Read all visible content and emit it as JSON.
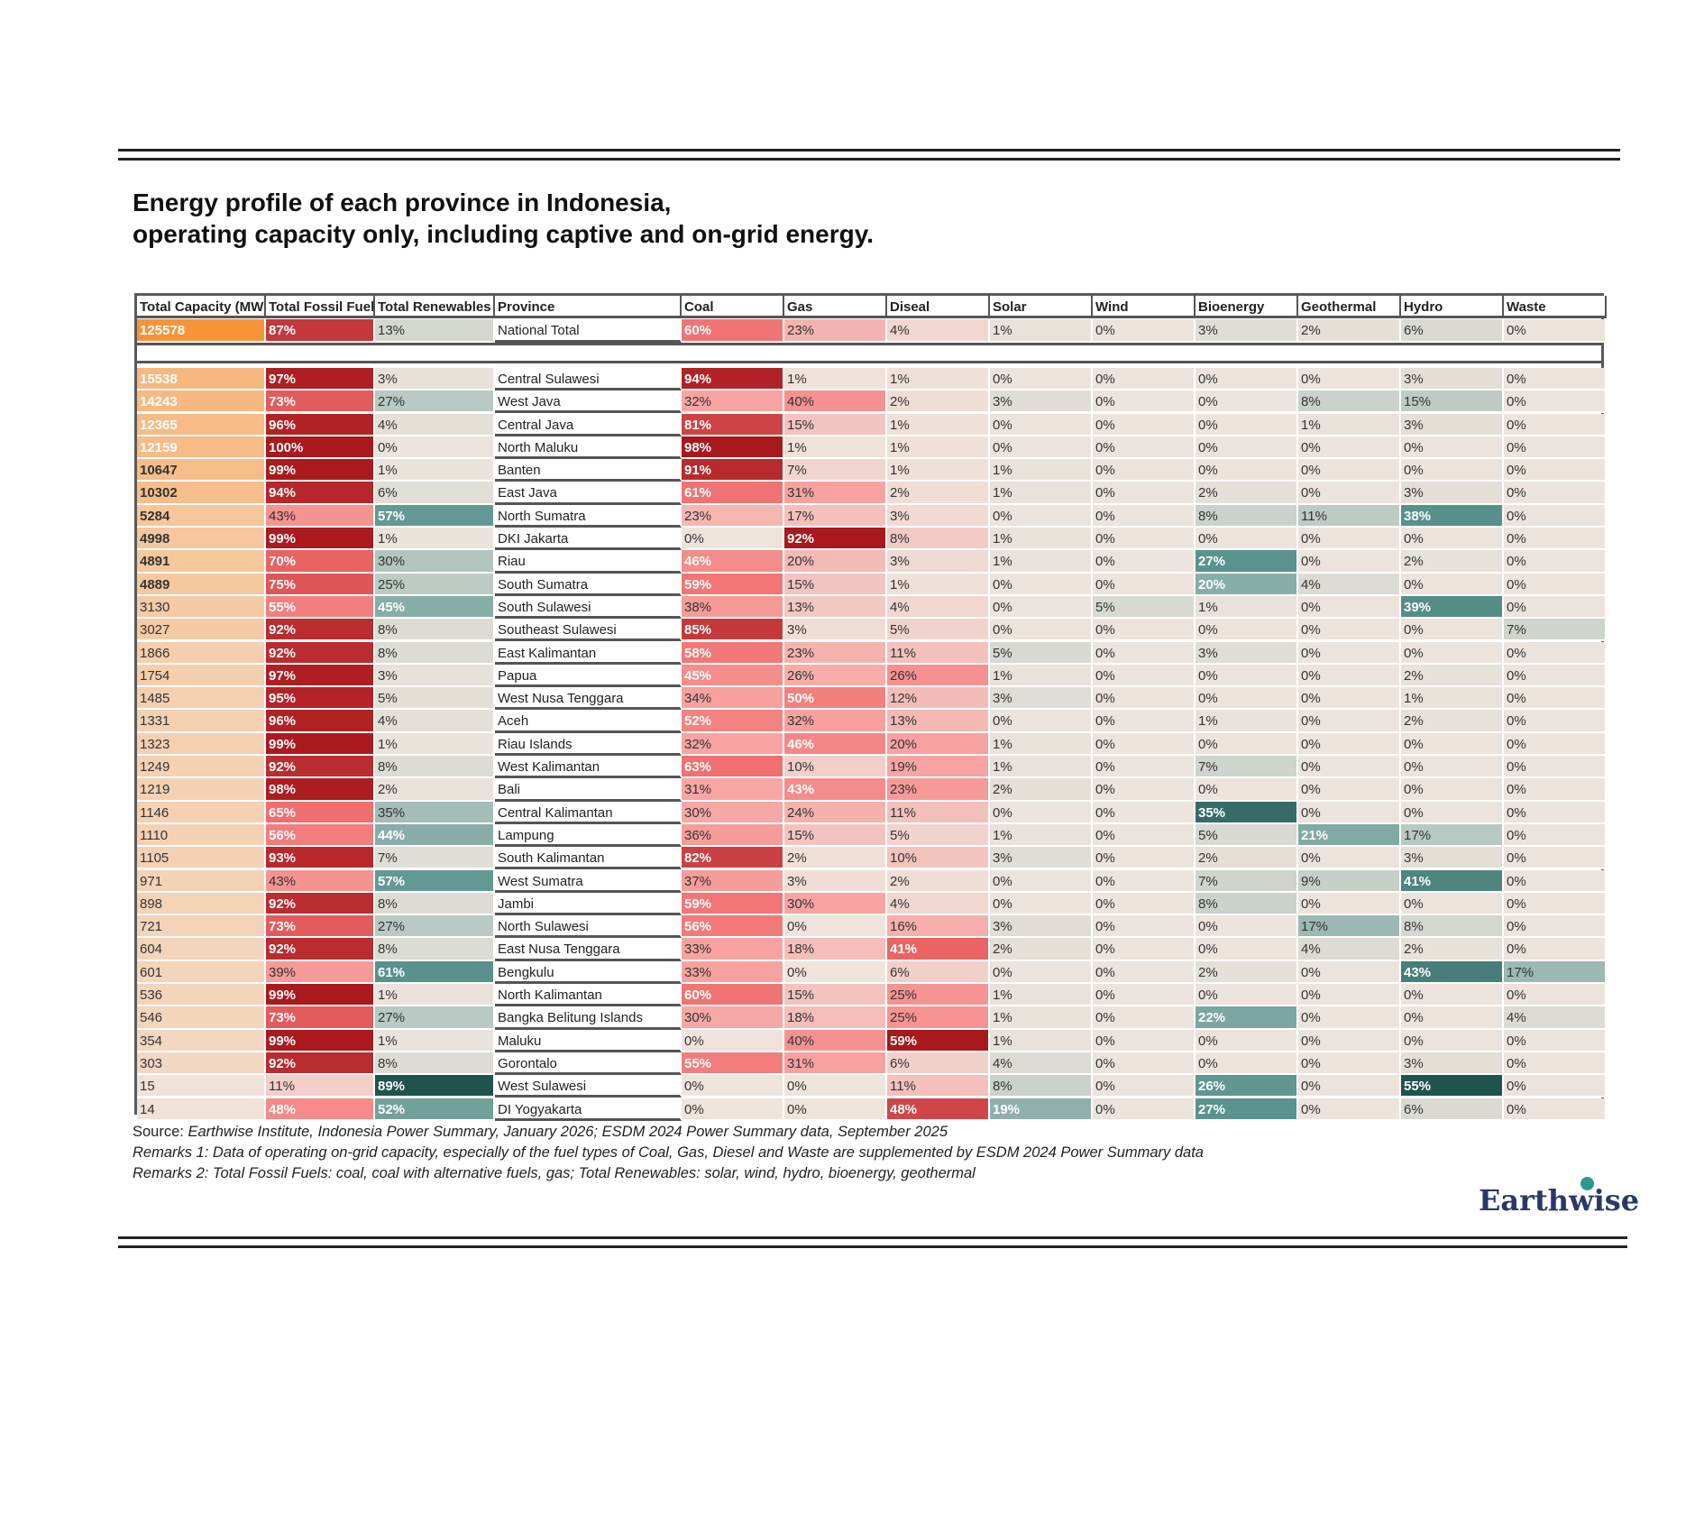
{
  "header": {
    "title_lines": [
      "Energy profile of each province in Indonesia,",
      "operating capacity only, including captive and on-grid energy."
    ]
  },
  "table": {
    "columns": [
      "Total Capacity (MW)",
      "Total Fossil Fuel",
      "Total Renewables",
      "Province",
      "Coal",
      "Gas",
      "Diseal",
      "Solar",
      "Wind",
      "Bioenergy",
      "Geothermal",
      "Hydro",
      "Waste"
    ],
    "national": [
      "125578",
      "87%",
      "13%",
      "National Total",
      "60%",
      "23%",
      "4%",
      "1%",
      "0%",
      "3%",
      "2%",
      "6%",
      "0%"
    ],
    "rows": [
      [
        "15538",
        "97%",
        "3%",
        "Central Sulawesi",
        "94%",
        "1%",
        "1%",
        "0%",
        "0%",
        "0%",
        "0%",
        "3%",
        "0%"
      ],
      [
        "14243",
        "73%",
        "27%",
        "West Java",
        "32%",
        "40%",
        "2%",
        "3%",
        "0%",
        "0%",
        "8%",
        "15%",
        "0%"
      ],
      [
        "12365",
        "96%",
        "4%",
        "Central Java",
        "81%",
        "15%",
        "1%",
        "0%",
        "0%",
        "0%",
        "1%",
        "3%",
        "0%"
      ],
      [
        "12159",
        "100%",
        "0%",
        "North Maluku",
        "98%",
        "1%",
        "1%",
        "0%",
        "0%",
        "0%",
        "0%",
        "0%",
        "0%"
      ],
      [
        "10647",
        "99%",
        "1%",
        "Banten",
        "91%",
        "7%",
        "1%",
        "1%",
        "0%",
        "0%",
        "0%",
        "0%",
        "0%"
      ],
      [
        "10302",
        "94%",
        "6%",
        "East Java",
        "61%",
        "31%",
        "2%",
        "1%",
        "0%",
        "2%",
        "0%",
        "3%",
        "0%"
      ],
      [
        "5284",
        "43%",
        "57%",
        "North Sumatra",
        "23%",
        "17%",
        "3%",
        "0%",
        "0%",
        "8%",
        "11%",
        "38%",
        "0%"
      ],
      [
        "4998",
        "99%",
        "1%",
        "DKI Jakarta",
        "0%",
        "92%",
        "8%",
        "1%",
        "0%",
        "0%",
        "0%",
        "0%",
        "0%"
      ],
      [
        "4891",
        "70%",
        "30%",
        "Riau",
        "46%",
        "20%",
        "3%",
        "1%",
        "0%",
        "27%",
        "0%",
        "2%",
        "0%"
      ],
      [
        "4889",
        "75%",
        "25%",
        "South Sumatra",
        "59%",
        "15%",
        "1%",
        "0%",
        "0%",
        "20%",
        "4%",
        "0%",
        "0%"
      ],
      [
        "3130",
        "55%",
        "45%",
        "South Sulawesi",
        "38%",
        "13%",
        "4%",
        "0%",
        "5%",
        "1%",
        "0%",
        "39%",
        "0%"
      ],
      [
        "3027",
        "92%",
        "8%",
        "Southeast Sulawesi",
        "85%",
        "3%",
        "5%",
        "0%",
        "0%",
        "0%",
        "0%",
        "0%",
        "7%"
      ],
      [
        "1866",
        "92%",
        "8%",
        "East Kalimantan",
        "58%",
        "23%",
        "11%",
        "5%",
        "0%",
        "3%",
        "0%",
        "0%",
        "0%"
      ],
      [
        "1754",
        "97%",
        "3%",
        "Papua",
        "45%",
        "26%",
        "26%",
        "1%",
        "0%",
        "0%",
        "0%",
        "2%",
        "0%"
      ],
      [
        "1485",
        "95%",
        "5%",
        "West Nusa Tenggara",
        "34%",
        "50%",
        "12%",
        "3%",
        "0%",
        "0%",
        "0%",
        "1%",
        "0%"
      ],
      [
        "1331",
        "96%",
        "4%",
        "Aceh",
        "52%",
        "32%",
        "13%",
        "0%",
        "0%",
        "1%",
        "0%",
        "2%",
        "0%"
      ],
      [
        "1323",
        "99%",
        "1%",
        "Riau Islands",
        "32%",
        "46%",
        "20%",
        "1%",
        "0%",
        "0%",
        "0%",
        "0%",
        "0%"
      ],
      [
        "1249",
        "92%",
        "8%",
        "West Kalimantan",
        "63%",
        "10%",
        "19%",
        "1%",
        "0%",
        "7%",
        "0%",
        "0%",
        "0%"
      ],
      [
        "1219",
        "98%",
        "2%",
        "Bali",
        "31%",
        "43%",
        "23%",
        "2%",
        "0%",
        "0%",
        "0%",
        "0%",
        "0%"
      ],
      [
        "1146",
        "65%",
        "35%",
        "Central Kalimantan",
        "30%",
        "24%",
        "11%",
        "0%",
        "0%",
        "35%",
        "0%",
        "0%",
        "0%"
      ],
      [
        "1110",
        "56%",
        "44%",
        "Lampung",
        "36%",
        "15%",
        "5%",
        "1%",
        "0%",
        "5%",
        "21%",
        "17%",
        "0%"
      ],
      [
        "1105",
        "93%",
        "7%",
        "South Kalimantan",
        "82%",
        "2%",
        "10%",
        "3%",
        "0%",
        "2%",
        "0%",
        "3%",
        "0%"
      ],
      [
        "971",
        "43%",
        "57%",
        "West Sumatra",
        "37%",
        "3%",
        "2%",
        "0%",
        "0%",
        "7%",
        "9%",
        "41%",
        "0%"
      ],
      [
        "898",
        "92%",
        "8%",
        "Jambi",
        "59%",
        "30%",
        "4%",
        "0%",
        "0%",
        "8%",
        "0%",
        "0%",
        "0%"
      ],
      [
        "721",
        "73%",
        "27%",
        "North Sulawesi",
        "56%",
        "0%",
        "16%",
        "3%",
        "0%",
        "0%",
        "17%",
        "8%",
        "0%"
      ],
      [
        "604",
        "92%",
        "8%",
        "East Nusa Tenggara",
        "33%",
        "18%",
        "41%",
        "2%",
        "0%",
        "0%",
        "4%",
        "2%",
        "0%"
      ],
      [
        "601",
        "39%",
        "61%",
        "Bengkulu",
        "33%",
        "0%",
        "6%",
        "0%",
        "0%",
        "2%",
        "0%",
        "43%",
        "17%"
      ],
      [
        "536",
        "99%",
        "1%",
        "North Kalimantan",
        "60%",
        "15%",
        "25%",
        "1%",
        "0%",
        "0%",
        "0%",
        "0%",
        "0%"
      ],
      [
        "546",
        "73%",
        "27%",
        "Bangka Belitung Islands",
        "30%",
        "18%",
        "25%",
        "1%",
        "0%",
        "22%",
        "0%",
        "0%",
        "4%"
      ],
      [
        "354",
        "99%",
        "1%",
        "Maluku",
        "0%",
        "40%",
        "59%",
        "1%",
        "0%",
        "0%",
        "0%",
        "0%",
        "0%"
      ],
      [
        "303",
        "92%",
        "8%",
        "Gorontalo",
        "55%",
        "31%",
        "6%",
        "4%",
        "0%",
        "0%",
        "0%",
        "3%",
        "0%"
      ],
      [
        "15",
        "11%",
        "89%",
        "West Sulawesi",
        "0%",
        "0%",
        "11%",
        "8%",
        "0%",
        "26%",
        "0%",
        "55%",
        "0%"
      ],
      [
        "14",
        "48%",
        "52%",
        "DI Yogyakarta",
        "0%",
        "0%",
        "48%",
        "19%",
        "0%",
        "27%",
        "0%",
        "6%",
        "0%"
      ]
    ]
  },
  "notes": {
    "source_label": "Source:",
    "source_text": "Earthwise Institute, Indonesia Power Summary, January 2026; ESDM 2024 Power Summary data, September 2025",
    "remark1": "Remarks 1: Data of operating on-grid capacity, especially of the fuel types of Coal, Gas, Diesel and Waste are supplemented by ESDM 2024 Power Summary data",
    "remark2": "Remarks 2: Total Fossil Fuels: coal, coal with alternative fuels, gas; Total Renewables: solar, wind, hydro, bioenergy, geothermal"
  },
  "logo": "Earthwise"
}
